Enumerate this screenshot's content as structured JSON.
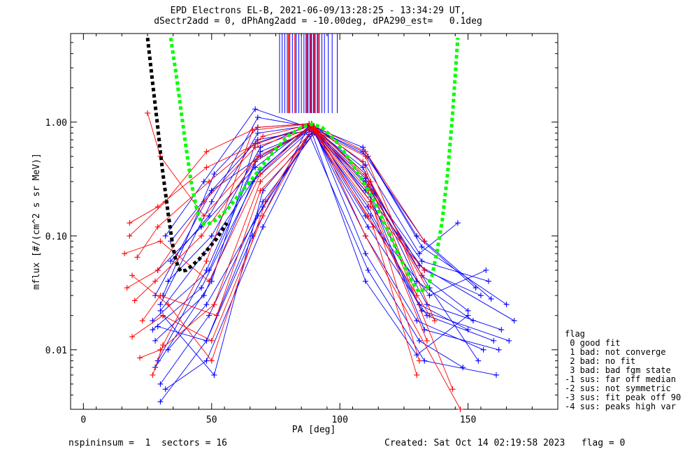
{
  "title": {
    "line1": "EPD Electrons EL-B, 2021-06-09/13:28:25 - 13:34:29 UT,",
    "line2": "dSectr2add = 0, dPhAng2add = -10.00deg, dPA290_est=   0.1deg"
  },
  "legend": {
    "heading": "flag",
    "items": [
      " 0 good fit",
      " 1 bad: not converge",
      " 2 bad: no fit",
      " 3 bad: bad fgm state",
      "-1 sus: far off median",
      "-2 sus: not symmetric",
      "-3 sus: fit peak off 90",
      "-4 sus: peaks high var"
    ]
  },
  "footer": {
    "left": "nspininsum =  1  sectors = 16",
    "right": "Created: Sat Oct 14 02:19:58 2023   flag = 0"
  },
  "colors": {
    "blue_series": "#0000ff",
    "red_series": "#ff0000",
    "fit_green": "#00ff00",
    "fit_black": "#000000"
  },
  "chart_data": {
    "type": "line",
    "xlabel": "PA [deg]",
    "ylabel": "mflux [#/(cm^2 s sr MeV)]",
    "xlim": [
      -5,
      185
    ],
    "ylim": [
      0.003,
      6.0
    ],
    "yscale": "log",
    "xticks": [
      0,
      50,
      100,
      150
    ],
    "yticks": [
      {
        "value": 0.01,
        "label": "0.01"
      },
      {
        "value": 0.1,
        "label": "0.10"
      },
      {
        "value": 1.0,
        "label": "1.00"
      }
    ],
    "fit_curves": [
      {
        "color": "green",
        "style": "dotted",
        "x": [
          34,
          36,
          38,
          40,
          42,
          44,
          46,
          48,
          52,
          56,
          60,
          65,
          70,
          75,
          80,
          85,
          89,
          93,
          98,
          103,
          108,
          113,
          118,
          123,
          128,
          131,
          134,
          136,
          138,
          140,
          142,
          144,
          146
        ],
        "y": [
          5.5,
          2.8,
          1.3,
          0.6,
          0.3,
          0.18,
          0.13,
          0.125,
          0.14,
          0.17,
          0.22,
          0.3,
          0.42,
          0.58,
          0.76,
          0.9,
          0.96,
          0.9,
          0.7,
          0.5,
          0.33,
          0.21,
          0.12,
          0.068,
          0.04,
          0.032,
          0.035,
          0.045,
          0.075,
          0.14,
          0.35,
          1.2,
          5.5
        ]
      },
      {
        "color": "black",
        "style": "dotted",
        "x": [
          25,
          26,
          27,
          28,
          29,
          30,
          31,
          32,
          33,
          34,
          35,
          36,
          37,
          38,
          40,
          42,
          45,
          48,
          52,
          56
        ],
        "y": [
          5.5,
          3.5,
          2.2,
          1.4,
          0.9,
          0.55,
          0.35,
          0.24,
          0.16,
          0.11,
          0.078,
          0.062,
          0.053,
          0.049,
          0.05,
          0.054,
          0.062,
          0.074,
          0.095,
          0.13
        ]
      }
    ],
    "vertical_markers": {
      "y_bottom": 1.2,
      "y_top": 6.0,
      "blue_x": [
        76.5,
        77.5,
        78.5,
        79.5,
        80.5,
        81.5,
        83.0,
        84.0,
        85.0,
        86.0,
        86.8,
        87.6,
        88.3,
        89.0,
        89.7,
        90.4,
        91.2,
        92.0,
        93.0,
        94.0,
        95.5,
        97.0,
        99.0
      ],
      "red_x": [
        80.0,
        82.5,
        87.2,
        88.7,
        90.0,
        91.5
      ]
    },
    "series": [
      {
        "color": "blue",
        "x": [
          30,
          48,
          68,
          89,
          110,
          130,
          150
        ],
        "y": [
          0.0035,
          0.012,
          0.15,
          0.82,
          0.04,
          0.009,
          0.02
        ]
      },
      {
        "color": "blue",
        "x": [
          28,
          50,
          69,
          89,
          110,
          133,
          155
        ],
        "y": [
          0.03,
          0.25,
          0.5,
          0.9,
          0.25,
          0.05,
          0.03
        ]
      },
      {
        "color": "blue",
        "x": [
          32,
          47,
          67,
          89,
          111,
          131,
          150
        ],
        "y": [
          0.1,
          0.3,
          1.3,
          0.88,
          0.18,
          0.025,
          0.015
        ]
      },
      {
        "color": "blue",
        "x": [
          27,
          46,
          68,
          88,
          110,
          132,
          158
        ],
        "y": [
          0.015,
          0.035,
          0.35,
          0.92,
          0.3,
          0.06,
          0.04
        ]
      },
      {
        "color": "blue",
        "x": [
          30,
          49,
          70,
          90,
          111,
          134,
          160
        ],
        "y": [
          0.005,
          0.02,
          0.2,
          0.8,
          0.12,
          0.02,
          0.012
        ]
      },
      {
        "color": "blue",
        "x": [
          33,
          50,
          69,
          88,
          109,
          130,
          152
        ],
        "y": [
          0.04,
          0.1,
          0.6,
          0.95,
          0.4,
          0.04,
          0.018
        ]
      },
      {
        "color": "blue",
        "x": [
          29,
          48,
          67,
          89,
          112,
          133,
          162
        ],
        "y": [
          0.008,
          0.05,
          0.45,
          0.9,
          0.22,
          0.015,
          0.01
        ]
      },
      {
        "color": "blue",
        "x": [
          31,
          51,
          70,
          90,
          110,
          131,
          148
        ],
        "y": [
          0.02,
          0.006,
          0.25,
          0.85,
          0.07,
          0.012,
          0.007
        ]
      },
      {
        "color": "blue",
        "x": [
          34,
          49,
          68,
          88,
          111,
          132,
          165
        ],
        "y": [
          0.06,
          0.15,
          0.8,
          0.93,
          0.5,
          0.08,
          0.025
        ]
      },
      {
        "color": "blue",
        "x": [
          28,
          47,
          66,
          89,
          110,
          135,
          157
        ],
        "y": [
          0.012,
          0.03,
          0.3,
          0.87,
          0.15,
          0.03,
          0.05
        ]
      },
      {
        "color": "blue",
        "x": [
          30,
          50,
          68,
          90,
          109,
          130,
          153
        ],
        "y": [
          0.025,
          0.2,
          1.1,
          0.9,
          0.6,
          0.1,
          0.035
        ]
      },
      {
        "color": "blue",
        "x": [
          32,
          48,
          70,
          88,
          111,
          133,
          161
        ],
        "y": [
          0.0045,
          0.008,
          0.12,
          0.78,
          0.05,
          0.008,
          0.006
        ]
      },
      {
        "color": "blue",
        "x": [
          29,
          46,
          67,
          89,
          110,
          132,
          150
        ],
        "y": [
          0.05,
          0.12,
          0.4,
          0.95,
          0.35,
          0.045,
          0.022
        ]
      },
      {
        "color": "blue",
        "x": [
          27,
          49,
          69,
          91,
          112,
          134,
          163
        ],
        "y": [
          0.018,
          0.05,
          0.55,
          0.88,
          0.2,
          0.025,
          0.015
        ]
      },
      {
        "color": "blue",
        "x": [
          31,
          51,
          68,
          89,
          110,
          131,
          146
        ],
        "y": [
          0.03,
          0.35,
          0.9,
          0.97,
          0.42,
          0.07,
          0.13
        ]
      },
      {
        "color": "blue",
        "x": [
          33,
          48,
          70,
          90,
          110,
          130,
          156
        ],
        "y": [
          0.01,
          0.025,
          0.18,
          0.83,
          0.1,
          0.018,
          0.01
        ]
      },
      {
        "color": "blue",
        "x": [
          28,
          50,
          67,
          88,
          109,
          133,
          159
        ],
        "y": [
          0.007,
          0.04,
          0.65,
          0.92,
          0.55,
          0.09,
          0.028
        ]
      },
      {
        "color": "blue",
        "x": [
          30,
          47,
          69,
          89,
          111,
          135,
          154
        ],
        "y": [
          0.022,
          0.07,
          0.38,
          0.9,
          0.27,
          0.035,
          0.008
        ]
      },
      {
        "color": "blue",
        "x": [
          34,
          50,
          68,
          90,
          112,
          132,
          166
        ],
        "y": [
          0.09,
          0.25,
          0.7,
          0.86,
          0.15,
          0.022,
          0.012
        ]
      },
      {
        "color": "blue",
        "x": [
          29,
          48,
          66,
          88,
          110,
          131,
          168
        ],
        "y": [
          0.016,
          0.012,
          0.1,
          0.94,
          0.32,
          0.055,
          0.018
        ]
      },
      {
        "color": "red",
        "x": [
          16,
          30,
          49,
          69,
          89,
          110,
          133
        ],
        "y": [
          0.07,
          0.09,
          0.04,
          0.35,
          0.95,
          0.55,
          0.09
        ]
      },
      {
        "color": "red",
        "x": [
          17,
          29,
          47,
          67,
          90,
          112,
          132
        ],
        "y": [
          0.035,
          0.05,
          0.2,
          0.6,
          0.9,
          0.3,
          0.045
        ]
      },
      {
        "color": "red",
        "x": [
          19,
          31,
          50,
          70,
          89,
          111,
          135
        ],
        "y": [
          0.013,
          0.02,
          0.012,
          0.15,
          0.88,
          0.15,
          0.02
        ]
      },
      {
        "color": "red",
        "x": [
          18,
          32,
          48,
          68,
          88,
          109,
          130
        ],
        "y": [
          0.1,
          0.2,
          0.55,
          0.9,
          0.97,
          0.45,
          0.03
        ]
      },
      {
        "color": "red",
        "x": [
          22,
          30,
          51,
          69,
          90,
          112,
          134
        ],
        "y": [
          0.0085,
          0.01,
          0.025,
          0.3,
          0.85,
          0.2,
          0.012
        ]
      },
      {
        "color": "red",
        "x": [
          20,
          28,
          46,
          67,
          89,
          111,
          131
        ],
        "y": [
          0.027,
          0.04,
          0.1,
          0.45,
          0.92,
          0.25,
          0.008
        ]
      },
      {
        "color": "red",
        "x": [
          21,
          29,
          49,
          70,
          88,
          110,
          144
        ],
        "y": [
          0.065,
          0.12,
          0.3,
          0.75,
          0.95,
          0.35,
          0.0045
        ]
      },
      {
        "color": "red",
        "x": [
          25,
          30,
          47,
          68,
          90,
          113,
          130
        ],
        "y": [
          1.2,
          0.5,
          0.15,
          0.5,
          0.9,
          0.12,
          0.006
        ]
      },
      {
        "color": "red",
        "x": [
          19,
          33,
          50,
          71,
          89,
          110,
          137
        ],
        "y": [
          0.045,
          0.025,
          0.008,
          0.2,
          0.87,
          0.5,
          0.018
        ]
      },
      {
        "color": "red",
        "x": [
          27,
          31,
          48,
          66,
          88,
          112,
          133
        ],
        "y": [
          0.006,
          0.011,
          0.06,
          0.85,
          0.96,
          0.18,
          0.05
        ]
      },
      {
        "color": "red",
        "x": [
          23,
          30,
          52,
          69,
          91,
          110,
          147
        ],
        "y": [
          0.018,
          0.03,
          0.02,
          0.25,
          0.84,
          0.1,
          0.003
        ]
      },
      {
        "color": "red",
        "x": [
          18,
          29,
          48,
          68,
          89,
          111,
          134
        ],
        "y": [
          0.13,
          0.18,
          0.4,
          0.65,
          0.93,
          0.28,
          0.035
        ]
      }
    ]
  }
}
